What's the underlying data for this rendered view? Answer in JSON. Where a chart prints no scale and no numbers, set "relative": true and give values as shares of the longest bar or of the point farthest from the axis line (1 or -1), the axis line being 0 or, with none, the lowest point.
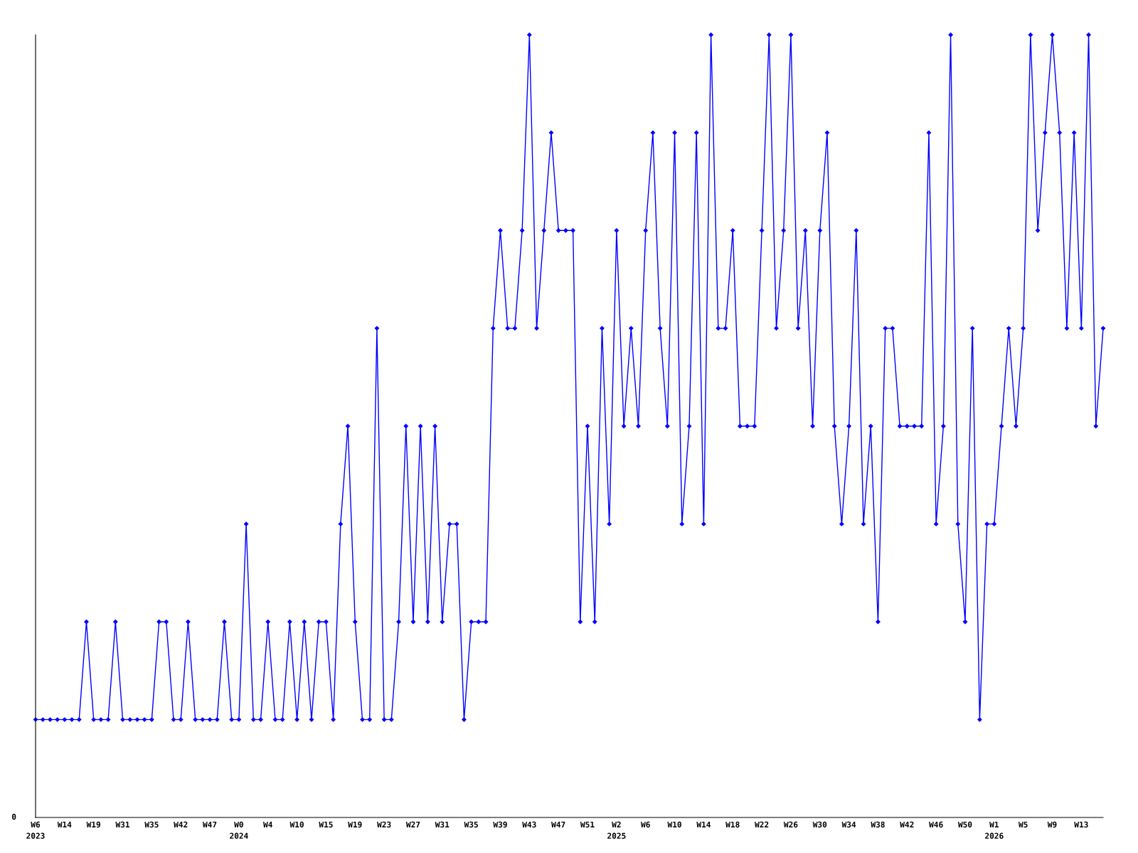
{
  "chart_data": {
    "type": "line",
    "relative": true,
    "marker": "diamond",
    "line_style": "solid",
    "grid": false,
    "annotations": [
      "0"
    ],
    "categories": [
      "W6\n2023",
      null,
      null,
      null,
      "W14",
      null,
      null,
      null,
      "W19",
      null,
      null,
      null,
      "W31",
      null,
      null,
      null,
      "W35",
      null,
      null,
      null,
      "W42",
      null,
      null,
      null,
      "W47",
      null,
      null,
      null,
      "W0\n2024",
      null,
      null,
      null,
      "W4",
      null,
      null,
      null,
      "W10",
      null,
      null,
      null,
      "W15",
      null,
      null,
      null,
      "W19",
      null,
      null,
      null,
      "W23",
      null,
      null,
      null,
      "W27",
      null,
      null,
      null,
      "W31",
      null,
      null,
      null,
      "W35",
      null,
      null,
      null,
      "W39",
      null,
      null,
      null,
      "W43",
      null,
      null,
      null,
      "W47",
      null,
      null,
      null,
      "W51",
      null,
      null,
      null,
      "W2\n2025",
      null,
      null,
      null,
      "W6",
      null,
      null,
      null,
      "W10",
      null,
      null,
      null,
      "W14",
      null,
      null,
      null,
      "W18",
      null,
      null,
      null,
      "W22",
      null,
      null,
      null,
      "W26",
      null,
      null,
      null,
      "W30",
      null,
      null,
      null,
      "W34",
      null,
      null,
      null,
      "W38",
      null,
      null,
      null,
      "W42",
      null,
      null,
      null,
      "W46",
      null,
      null,
      null,
      "W50",
      null,
      null,
      null,
      "W1\n2026",
      null,
      null,
      null,
      "W5",
      null,
      null,
      null,
      "W9",
      null,
      null,
      null,
      "W13",
      null,
      null,
      null
    ],
    "series": [
      {
        "color": "#0000ff",
        "values": [
          0.125,
          0.125,
          0.125,
          0.125,
          0.125,
          0.125,
          0.125,
          0.25,
          0.125,
          0.125,
          0.125,
          0.25,
          0.125,
          0.125,
          0.125,
          0.125,
          0.125,
          0.25,
          0.25,
          0.125,
          0.125,
          0.25,
          0.125,
          0.125,
          0.125,
          0.125,
          0.25,
          0.125,
          0.125,
          0.375,
          0.125,
          0.125,
          0.25,
          0.125,
          0.125,
          0.25,
          0.125,
          0.25,
          0.125,
          0.25,
          0.25,
          0.125,
          0.375,
          0.5,
          0.25,
          0.125,
          0.125,
          0.625,
          0.125,
          0.125,
          0.25,
          0.5,
          0.25,
          0.5,
          0.25,
          0.5,
          0.25,
          0.375,
          0.375,
          0.125,
          0.25,
          0.25,
          0.25,
          0.625,
          0.75,
          0.625,
          0.625,
          0.75,
          1,
          0.625,
          0.75,
          0.875,
          0.75,
          0.75,
          0.75,
          0.25,
          0.5,
          0.25,
          0.625,
          0.375,
          0.75,
          0.5,
          0.625,
          0.5,
          0.75,
          0.875,
          0.625,
          0.5,
          0.875,
          0.375,
          0.5,
          0.875,
          0.375,
          1,
          0.625,
          0.625,
          0.75,
          0.5,
          0.5,
          0.5,
          0.75,
          1,
          0.625,
          0.75,
          1,
          0.625,
          0.75,
          0.5,
          0.75,
          0.875,
          0.5,
          0.375,
          0.5,
          0.75,
          0.375,
          0.5,
          0.25,
          0.625,
          0.625,
          0.5,
          0.5,
          0.5,
          0.5,
          0.875,
          0.375,
          0.5,
          1,
          0.375,
          0.25,
          0.625,
          0.125,
          0.375,
          0.375,
          0.5,
          0.625,
          0.5,
          0.625,
          1,
          0.75,
          0.875,
          1,
          0.875,
          0.625,
          0.875,
          0.625,
          1,
          0.5,
          0.625
        ]
      }
    ]
  }
}
